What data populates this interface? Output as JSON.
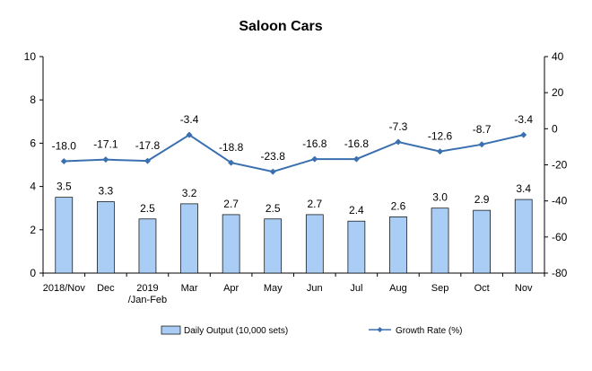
{
  "chart_data": {
    "type": "bar+line",
    "title": "Saloon Cars",
    "categories": [
      [
        "2018/Nov"
      ],
      [
        "Dec"
      ],
      [
        "2019",
        "/Jan-Feb"
      ],
      [
        "Mar"
      ],
      [
        "Apr"
      ],
      [
        "May"
      ],
      [
        "Jun"
      ],
      [
        "Jul"
      ],
      [
        "Aug"
      ],
      [
        "Sep"
      ],
      [
        "Oct"
      ],
      [
        "Nov"
      ]
    ],
    "series": [
      {
        "name": "Daily Output (10,000 sets)",
        "type": "bar",
        "axis": "left",
        "color": "#a9cdf5",
        "values": [
          3.5,
          3.3,
          2.5,
          3.2,
          2.7,
          2.5,
          2.7,
          2.4,
          2.6,
          3.0,
          2.9,
          3.4
        ],
        "labels": [
          "3.5",
          "3.3",
          "2.5",
          "3.2",
          "2.7",
          "2.5",
          "2.7",
          "2.4",
          "2.6",
          "3.0",
          "2.9",
          "3.4"
        ]
      },
      {
        "name": "Growth Rate (%)",
        "type": "line",
        "axis": "right",
        "color": "#3a6fb0",
        "values": [
          -18.0,
          -17.1,
          -17.8,
          -3.4,
          -18.8,
          -23.8,
          -16.8,
          -16.8,
          -7.3,
          -12.6,
          -8.7,
          -3.4
        ],
        "labels": [
          "-18.0",
          "-17.1",
          "-17.8",
          "-3.4",
          "-18.8",
          "-23.8",
          "-16.8",
          "-16.8",
          "-7.3",
          "-12.6",
          "-8.7",
          "-3.4"
        ]
      }
    ],
    "y_left": {
      "min": 0,
      "max": 10,
      "ticks": [
        "0",
        "2",
        "4",
        "6",
        "8",
        "10"
      ]
    },
    "y_right": {
      "min": -80,
      "max": 40,
      "ticks": [
        "-80",
        "-60",
        "-40",
        "-20",
        "0",
        "20",
        "40"
      ]
    },
    "grid": false,
    "legend_position": "bottom"
  }
}
